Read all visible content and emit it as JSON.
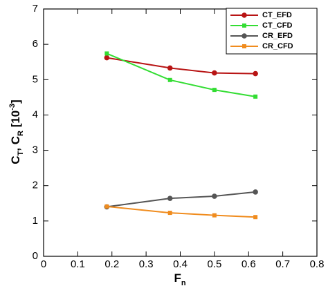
{
  "chart_data": {
    "type": "line",
    "xlabel": [
      "F",
      "n"
    ],
    "ylabel": [
      "C",
      "T",
      ", C",
      "R",
      " [10",
      "-3",
      "]"
    ],
    "x": [
      0.185,
      0.37,
      0.5,
      0.62
    ],
    "series": [
      {
        "name": "CT_EFD",
        "color": "#b81414",
        "marker": "circle",
        "values": [
          5.62,
          5.33,
          5.19,
          5.17
        ]
      },
      {
        "name": "CT_CFD",
        "color": "#33dd33",
        "marker": "square",
        "values": [
          5.74,
          4.99,
          4.71,
          4.52
        ]
      },
      {
        "name": "CR_EFD",
        "color": "#555555",
        "marker": "circle",
        "values": [
          1.4,
          1.64,
          1.7,
          1.82
        ]
      },
      {
        "name": "CR_CFD",
        "color": "#f08c1e",
        "marker": "square",
        "values": [
          1.41,
          1.23,
          1.16,
          1.11
        ]
      }
    ],
    "xlim": [
      0,
      0.8
    ],
    "ylim": [
      0,
      7
    ],
    "xticks": [
      0,
      0.1,
      0.2,
      0.3,
      0.4,
      0.5,
      0.6,
      0.7,
      0.8
    ],
    "yticks": [
      0,
      1,
      2,
      3,
      4,
      5,
      6,
      7
    ],
    "legend": "upper right"
  }
}
